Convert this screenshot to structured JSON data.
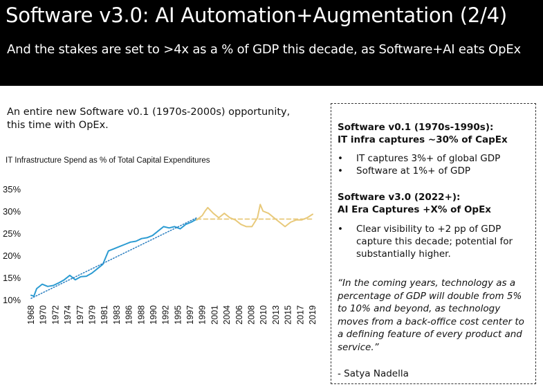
{
  "header": {
    "title": "Software v3.0: AI Automation+Augmentation (2/4)",
    "subtitle": "And the stakes are set to >4x as a % of GDP this decade, as Software+AI eats OpEx"
  },
  "intro": {
    "line1": "An entire new Software v0.1 (1970s-2000s) opportunity,",
    "line2": "this time with OpEx."
  },
  "colors": {
    "historical": "#2b9bd2",
    "projection": "#e8c97a",
    "trend": "#2b7fc0",
    "header_bg": "#000000"
  },
  "chart_data": {
    "type": "line",
    "title": "IT Infrastructure Spend as % of Total Capital Expenditures",
    "xlabel": "",
    "ylabel": "",
    "ylim": [
      10,
      35
    ],
    "y_ticks": [
      "10%",
      "15%",
      "20%",
      "25%",
      "30%",
      "35%"
    ],
    "x_ticks": [
      "1968",
      "1970",
      "1972",
      "1974",
      "1977",
      "1979",
      "1981",
      "1983",
      "1986",
      "1988",
      "1990",
      "1992",
      "1995",
      "1997",
      "1999",
      "2001",
      "2004",
      "2006",
      "2008",
      "2010",
      "2013",
      "2015",
      "2017",
      "2019"
    ],
    "series": [
      {
        "style": "historical",
        "x": [
          1968,
          1968.5,
          1969,
          1970,
          1971,
          1972,
          1973,
          1974,
          1975,
          1976,
          1977,
          1978,
          1979,
          1980,
          1981,
          1982,
          1983,
          1984,
          1985,
          1986,
          1987,
          1988,
          1989,
          1990,
          1991,
          1992,
          1993,
          1994,
          1995,
          1996,
          1997,
          1998
        ],
        "y": [
          11,
          10.8,
          12.5,
          13.5,
          13,
          13.2,
          13.8,
          14.5,
          15.5,
          14.5,
          15.2,
          15.3,
          16,
          17,
          18,
          21,
          21.5,
          22,
          22.5,
          23,
          23.2,
          23.8,
          24,
          24.5,
          25.5,
          26.5,
          26.2,
          26.5,
          26,
          27,
          27.5,
          28.2
        ]
      },
      {
        "style": "projection",
        "x": [
          1998,
          1999,
          1999.5,
          2000,
          2001,
          2002,
          2003,
          2004,
          2005,
          2006,
          2007,
          2008,
          2009,
          2009.5,
          2010,
          2011,
          2012,
          2013,
          2014,
          2015,
          2016,
          2017,
          2018,
          2019
        ],
        "y": [
          28,
          29,
          30,
          30.8,
          29.5,
          28.5,
          29.5,
          28.5,
          28,
          27,
          26.5,
          26.5,
          28.5,
          31.5,
          30,
          29.5,
          28.5,
          27.5,
          26.5,
          27.5,
          28,
          28,
          28.5,
          29.3
        ]
      },
      {
        "style": "trend",
        "x": [
          1968,
          1998
        ],
        "y": [
          10.3,
          28.5
        ]
      },
      {
        "style": "plateau",
        "x": [
          1998,
          2019
        ],
        "y": [
          28.2,
          28.2
        ]
      }
    ]
  },
  "panel": {
    "v01_heading_1": "Software v0.1 (1970s-1990s):",
    "v01_heading_2": "IT infra captures ~30% of CapEx",
    "v01_bullets": [
      "IT captures 3%+ of global GDP",
      "Software at 1%+ of GDP"
    ],
    "v30_heading_1": "Software v3.0 (2022+):",
    "v30_heading_2": "AI Era Captures +X% of OpEx",
    "v30_bullets": [
      "Clear visibility to +2 pp of GDP capture this decade; potential for substantially higher."
    ],
    "quote": "“In the coming years, technology as a percentage of GDP will double from 5% to 10% and beyond, as technology moves from a back-office cost center to a defining feature of every product and service.”",
    "attribution": "- Satya Nadella"
  }
}
